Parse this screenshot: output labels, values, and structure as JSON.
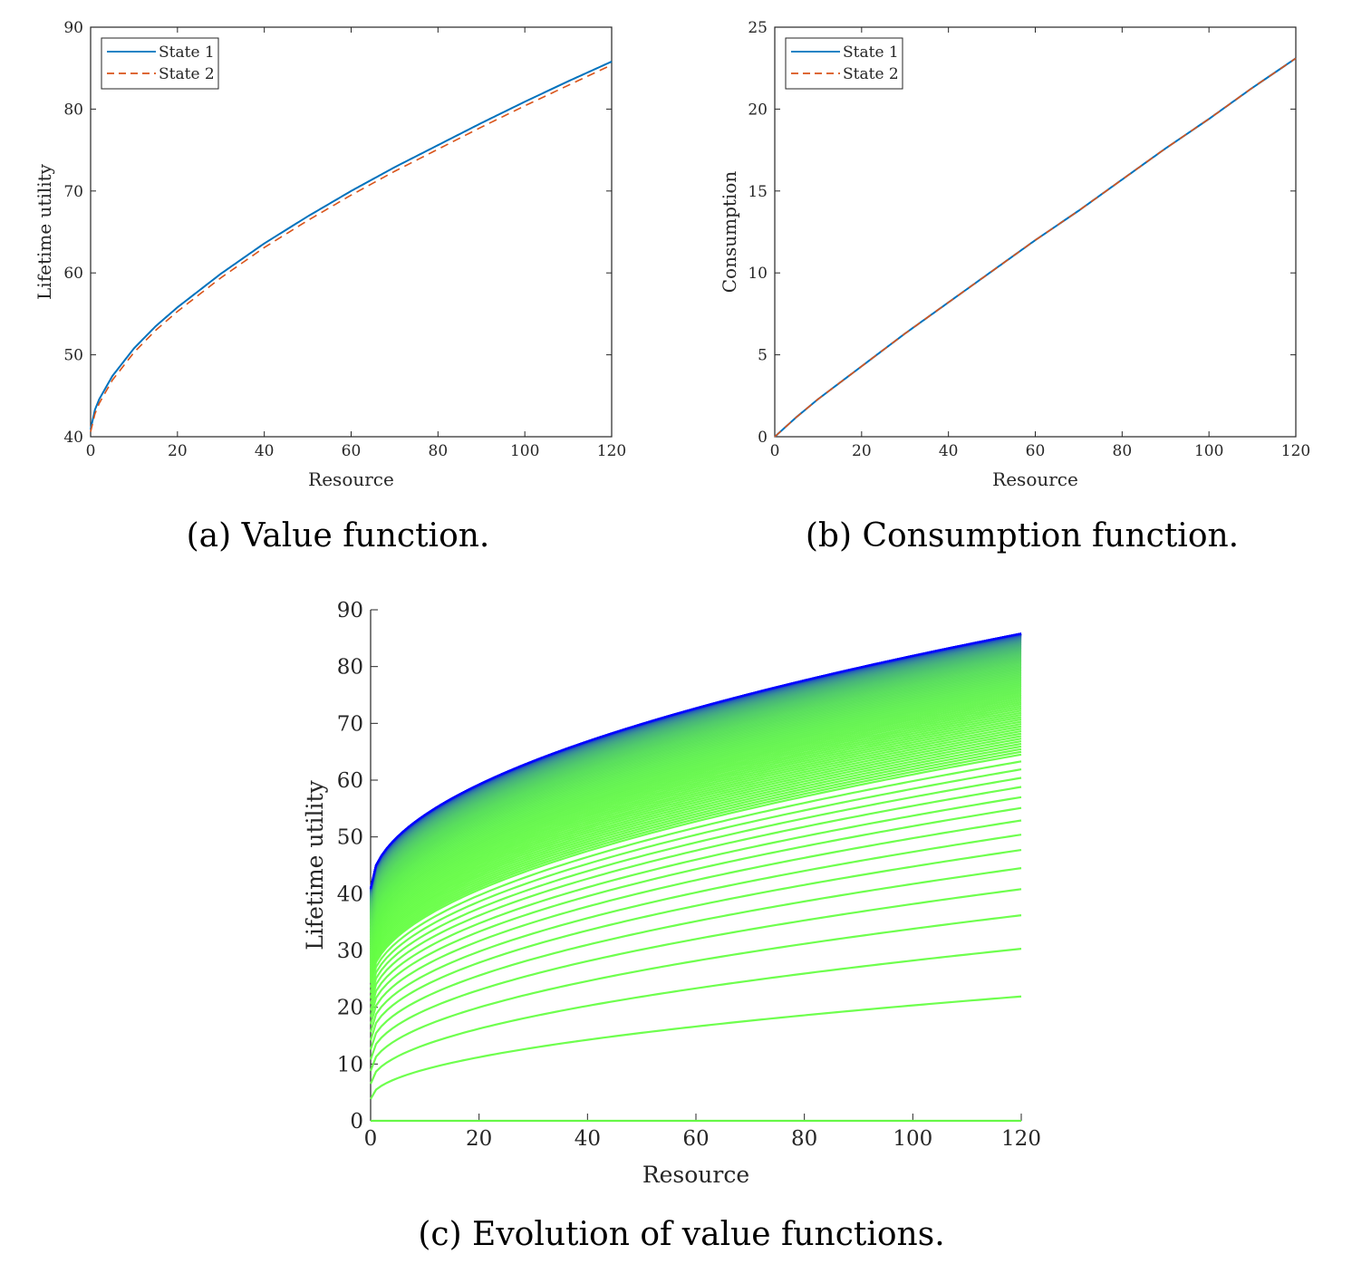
{
  "figure": {
    "captions": [
      "(a) Value function.",
      "(b) Consumption function.",
      "(c) Evolution of value functions."
    ]
  },
  "colors": {
    "state1": "#0072BD",
    "state2": "#D95319",
    "evolution_start": "#66ff44",
    "evolution_end": "#0000ff"
  },
  "chart_data": [
    {
      "id": "a",
      "type": "line",
      "caption": "(a) Value function.",
      "xlabel": "Resource",
      "ylabel": "Lifetime utility",
      "xlim": [
        0,
        120
      ],
      "ylim": [
        40,
        90
      ],
      "xticks": [
        0,
        20,
        40,
        60,
        80,
        100,
        120
      ],
      "yticks": [
        40,
        50,
        60,
        70,
        80,
        90
      ],
      "grid": false,
      "legend": "top-left",
      "x": [
        0,
        1,
        2,
        5,
        10,
        15,
        20,
        30,
        40,
        50,
        60,
        70,
        80,
        90,
        100,
        110,
        120
      ],
      "series": [
        {
          "name": "State 1",
          "style": "solid",
          "color": "#0072BD",
          "values": [
            40.9,
            43.3,
            44.6,
            47.4,
            50.8,
            53.5,
            55.8,
            59.9,
            63.6,
            66.9,
            70.0,
            72.9,
            75.6,
            78.3,
            80.9,
            83.4,
            85.8
          ]
        },
        {
          "name": "State 2",
          "style": "dashed",
          "color": "#D95319",
          "values": [
            40.6,
            42.8,
            44.1,
            46.9,
            50.3,
            53.0,
            55.3,
            59.4,
            63.1,
            66.4,
            69.5,
            72.4,
            75.1,
            77.8,
            80.4,
            82.9,
            85.4
          ]
        }
      ]
    },
    {
      "id": "b",
      "type": "line",
      "caption": "(b) Consumption function.",
      "xlabel": "Resource",
      "ylabel": "Consumption",
      "xlim": [
        0,
        120
      ],
      "ylim": [
        0,
        25
      ],
      "xticks": [
        0,
        20,
        40,
        60,
        80,
        100,
        120
      ],
      "yticks": [
        0,
        5,
        10,
        15,
        20,
        25
      ],
      "grid": false,
      "legend": "top-left",
      "x": [
        0,
        5,
        10,
        20,
        30,
        40,
        50,
        60,
        70,
        80,
        90,
        100,
        110,
        120
      ],
      "series": [
        {
          "name": "State 1",
          "style": "solid",
          "color": "#0072BD",
          "values": [
            0,
            1.2,
            2.3,
            4.3,
            6.3,
            8.2,
            10.1,
            12.0,
            13.8,
            15.7,
            17.6,
            19.4,
            21.3,
            23.1
          ]
        },
        {
          "name": "State 2",
          "style": "dashed",
          "color": "#D95319",
          "values": [
            0,
            1.2,
            2.3,
            4.3,
            6.3,
            8.2,
            10.1,
            12.0,
            13.8,
            15.7,
            17.6,
            19.4,
            21.3,
            23.1
          ]
        }
      ]
    },
    {
      "id": "c",
      "type": "line",
      "caption": "(c) Evolution of value functions.",
      "xlabel": "Resource",
      "ylabel": "Lifetime utility",
      "xlim": [
        0,
        120
      ],
      "ylim": [
        0,
        90
      ],
      "xticks": [
        0,
        20,
        40,
        60,
        80,
        100,
        120
      ],
      "yticks": [
        0,
        10,
        20,
        30,
        40,
        50,
        60,
        70,
        80,
        90
      ],
      "grid": false,
      "box": false,
      "iterations": 120,
      "color_gradient": [
        "#66ff44",
        "#0000ff"
      ],
      "values_at_x0_start_to_end": [
        0,
        40.9
      ],
      "values_at_x120_by_iteration": [
        0,
        21.9,
        30.3,
        36.2,
        40.8,
        44.5,
        47.7,
        50.4,
        52.9,
        55.1,
        57.0,
        58.8,
        60.4,
        61.9,
        63.3,
        64.5
      ],
      "values_at_x120_final": 85.8
    }
  ]
}
